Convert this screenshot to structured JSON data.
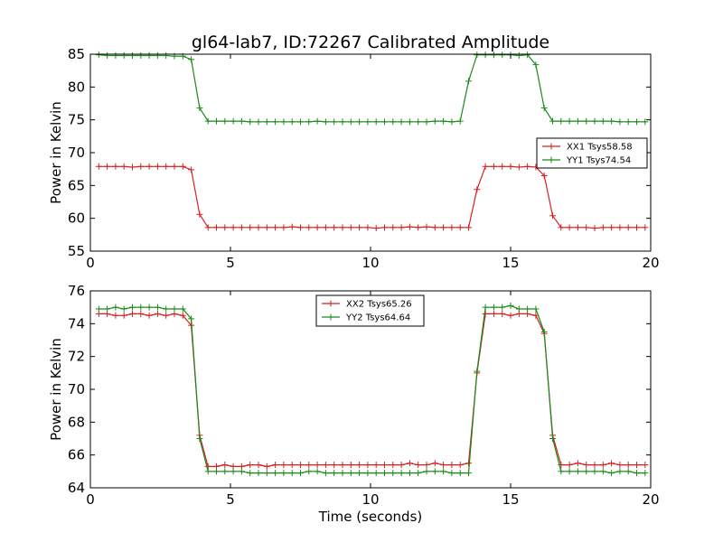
{
  "figure": {
    "title": "gl64-lab7, ID:72267 Calibrated Amplitude"
  },
  "chart_data": [
    {
      "type": "line",
      "title": "gl64-lab7, ID:72267 Calibrated Amplitude",
      "xlabel": "",
      "ylabel": "Power in Kelvin",
      "xlim": [
        0,
        20
      ],
      "ylim": [
        55,
        85
      ],
      "xticks": [
        "0",
        "5",
        "10",
        "15",
        "20"
      ],
      "yticks": [
        "55",
        "60",
        "65",
        "70",
        "75",
        "80",
        "85"
      ],
      "grid": false,
      "legend_position": "center-right",
      "x": [
        0.3,
        0.6,
        0.9,
        1.2,
        1.5,
        1.8,
        2.1,
        2.4,
        2.7,
        3.0,
        3.3,
        3.6,
        3.9,
        4.2,
        4.5,
        4.8,
        5.1,
        5.4,
        5.7,
        6.0,
        6.3,
        6.6,
        6.9,
        7.2,
        7.5,
        7.8,
        8.1,
        8.4,
        8.7,
        9.0,
        9.3,
        9.6,
        9.9,
        10.2,
        10.5,
        10.8,
        11.1,
        11.4,
        11.7,
        12.0,
        12.3,
        12.6,
        12.9,
        13.2,
        13.5,
        13.8,
        14.1,
        14.4,
        14.7,
        15.0,
        15.3,
        15.6,
        15.9,
        16.2,
        16.5,
        16.8,
        17.1,
        17.4,
        17.7,
        18.0,
        18.3,
        18.6,
        18.9,
        19.2,
        19.5,
        19.8
      ],
      "series": [
        {
          "name": "XX1 Tsys58.58",
          "color": "#d62020",
          "values": [
            67.9,
            67.9,
            67.9,
            67.9,
            67.8,
            67.9,
            67.9,
            67.9,
            67.9,
            67.9,
            67.9,
            67.4,
            60.6,
            58.6,
            58.6,
            58.6,
            58.6,
            58.6,
            58.6,
            58.6,
            58.6,
            58.6,
            58.6,
            58.7,
            58.6,
            58.6,
            58.6,
            58.6,
            58.6,
            58.6,
            58.6,
            58.6,
            58.6,
            58.5,
            58.6,
            58.6,
            58.6,
            58.7,
            58.6,
            58.7,
            58.6,
            58.6,
            58.6,
            58.6,
            58.6,
            64.4,
            67.9,
            67.9,
            67.9,
            67.9,
            67.8,
            67.9,
            67.8,
            66.5,
            60.4,
            58.6,
            58.6,
            58.6,
            58.6,
            58.5,
            58.6,
            58.6,
            58.6,
            58.6,
            58.6,
            58.6
          ]
        },
        {
          "name": "YY1 Tsys74.54",
          "color": "#1a8a1a",
          "values": [
            84.9,
            84.8,
            84.8,
            84.8,
            84.8,
            84.8,
            84.8,
            84.8,
            84.8,
            84.7,
            84.7,
            84.2,
            76.8,
            74.8,
            74.8,
            74.8,
            74.8,
            74.8,
            74.7,
            74.7,
            74.7,
            74.7,
            74.7,
            74.7,
            74.7,
            74.7,
            74.8,
            74.7,
            74.7,
            74.7,
            74.7,
            74.7,
            74.7,
            74.7,
            74.7,
            74.7,
            74.7,
            74.7,
            74.7,
            74.7,
            74.8,
            74.8,
            74.7,
            74.8,
            80.9,
            84.9,
            84.9,
            84.9,
            84.9,
            84.9,
            84.8,
            84.9,
            83.4,
            76.8,
            74.8,
            74.8,
            74.8,
            74.8,
            74.8,
            74.8,
            74.8,
            74.8,
            74.7,
            74.7,
            74.7,
            74.7
          ]
        }
      ]
    },
    {
      "type": "line",
      "title": "",
      "xlabel": "Time (seconds)",
      "ylabel": "Power in Kelvin",
      "xlim": [
        0,
        20
      ],
      "ylim": [
        64,
        76
      ],
      "xticks": [
        "0",
        "5",
        "10",
        "15",
        "20"
      ],
      "yticks": [
        "64",
        "66",
        "68",
        "70",
        "72",
        "74",
        "76"
      ],
      "grid": false,
      "legend_position": "top-center",
      "x": [
        0.3,
        0.6,
        0.9,
        1.2,
        1.5,
        1.8,
        2.1,
        2.4,
        2.7,
        3.0,
        3.3,
        3.6,
        3.9,
        4.2,
        4.5,
        4.8,
        5.1,
        5.4,
        5.7,
        6.0,
        6.3,
        6.6,
        6.9,
        7.2,
        7.5,
        7.8,
        8.1,
        8.4,
        8.7,
        9.0,
        9.3,
        9.6,
        9.9,
        10.2,
        10.5,
        10.8,
        11.1,
        11.4,
        11.7,
        12.0,
        12.3,
        12.6,
        12.9,
        13.2,
        13.5,
        13.8,
        14.1,
        14.4,
        14.7,
        15.0,
        15.3,
        15.6,
        15.9,
        16.2,
        16.5,
        16.8,
        17.1,
        17.4,
        17.7,
        18.0,
        18.3,
        18.6,
        18.9,
        19.2,
        19.5,
        19.8
      ],
      "series": [
        {
          "name": "XX2 Tsys65.26",
          "color": "#d62020",
          "values": [
            74.6,
            74.6,
            74.5,
            74.5,
            74.6,
            74.6,
            74.5,
            74.6,
            74.5,
            74.6,
            74.5,
            73.9,
            67.2,
            65.3,
            65.3,
            65.4,
            65.3,
            65.3,
            65.4,
            65.4,
            65.3,
            65.4,
            65.4,
            65.4,
            65.4,
            65.4,
            65.4,
            65.4,
            65.4,
            65.4,
            65.4,
            65.4,
            65.4,
            65.4,
            65.4,
            65.4,
            65.4,
            65.5,
            65.4,
            65.4,
            65.5,
            65.4,
            65.4,
            65.4,
            65.5,
            71.0,
            74.6,
            74.6,
            74.6,
            74.5,
            74.6,
            74.6,
            74.5,
            73.4,
            67.2,
            65.4,
            65.4,
            65.5,
            65.4,
            65.4,
            65.4,
            65.5,
            65.4,
            65.4,
            65.4,
            65.4
          ]
        },
        {
          "name": "YY2 Tsys64.64",
          "color": "#1a8a1a",
          "values": [
            74.9,
            74.9,
            75.0,
            74.9,
            75.0,
            75.0,
            75.0,
            75.0,
            74.9,
            74.9,
            74.9,
            74.3,
            67.0,
            65.0,
            65.0,
            65.0,
            65.0,
            65.0,
            64.9,
            64.9,
            64.9,
            64.9,
            64.9,
            64.9,
            64.9,
            65.0,
            65.0,
            64.9,
            64.9,
            64.9,
            64.9,
            64.9,
            64.9,
            64.9,
            64.9,
            64.9,
            64.9,
            64.9,
            64.9,
            65.0,
            65.0,
            65.0,
            64.9,
            64.9,
            64.9,
            71.1,
            75.0,
            75.0,
            75.0,
            75.1,
            74.9,
            74.9,
            74.9,
            73.5,
            67.0,
            65.0,
            65.0,
            65.0,
            65.0,
            65.0,
            65.0,
            64.9,
            65.0,
            65.0,
            64.9,
            64.9
          ]
        }
      ]
    }
  ]
}
